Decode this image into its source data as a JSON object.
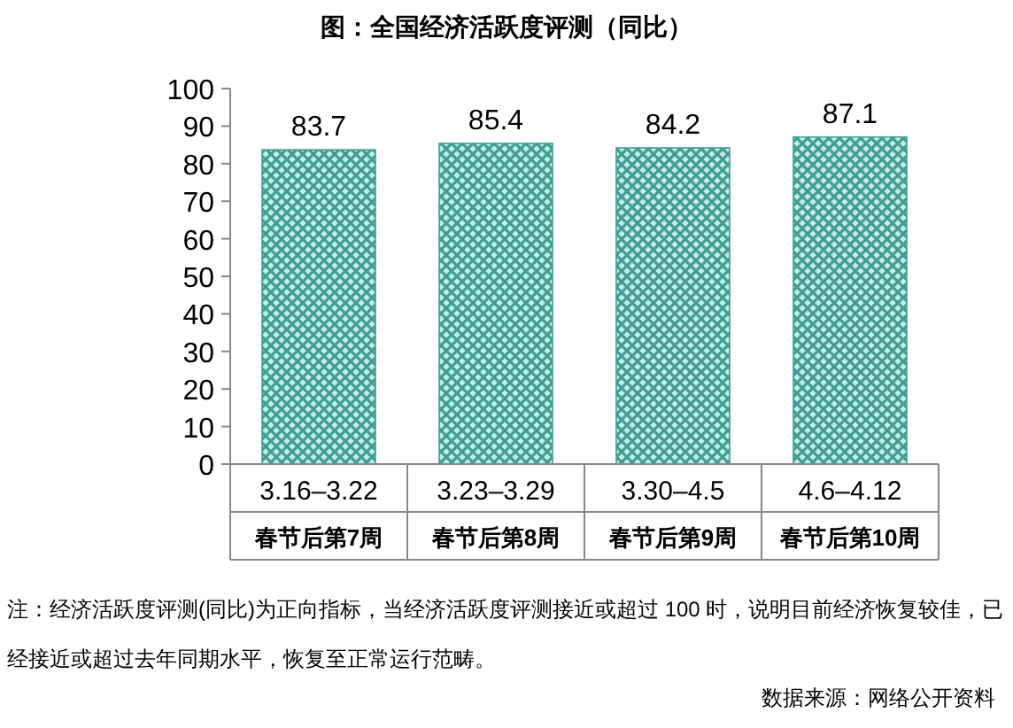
{
  "chart_data": {
    "type": "bar",
    "title": "图：全国经济活跃度评测（同比）",
    "categories": [
      "3.16–3.22\n春节后第7周",
      "3.23–3.29\n春节后第8周",
      "3.30–4.5\n春节后第9周",
      "4.6–4.12\n春节后第10周"
    ],
    "values": [
      83.7,
      85.4,
      84.2,
      87.1
    ],
    "color": "#3f9e94",
    "ylim": [
      0,
      100
    ],
    "yticks": [
      0,
      10,
      20,
      30,
      40,
      50,
      60,
      70,
      80,
      90,
      100
    ],
    "data_labels": true,
    "annotations": [
      "注：经济活跃度评测(同比)为正向指标，当经济活跃度评测接近或超过 100 时，说明目前经济恢复较佳，已经接近或超过去年同期水平，恢复至正常运行范畴。",
      "数据来源：网络公开资料"
    ]
  }
}
